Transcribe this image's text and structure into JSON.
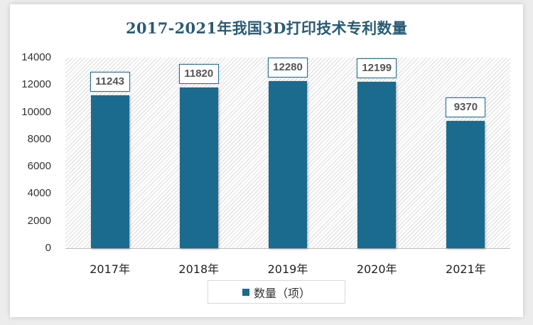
{
  "chart_data": {
    "type": "bar",
    "title": "2017-2021年我国3D打印技术专利数量",
    "categories": [
      "2017年",
      "2018年",
      "2019年",
      "2020年",
      "2021年"
    ],
    "series": [
      {
        "name": "数量（项）",
        "values": [
          11243,
          11820,
          12280,
          12199,
          9370
        ],
        "color": "#1b6b8f"
      }
    ],
    "xlabel": "",
    "ylabel": "",
    "ylim": [
      0,
      14000
    ],
    "yticks": [
      "0",
      "2000",
      "4000",
      "6000",
      "8000",
      "10000",
      "12000",
      "14000"
    ],
    "grid": false,
    "legend_position": "bottom",
    "data_labels": [
      "11243",
      "11820",
      "12280",
      "12199",
      "9370"
    ]
  },
  "colors": {
    "bar": "#1b6b8f",
    "title": "#2a5b73"
  }
}
